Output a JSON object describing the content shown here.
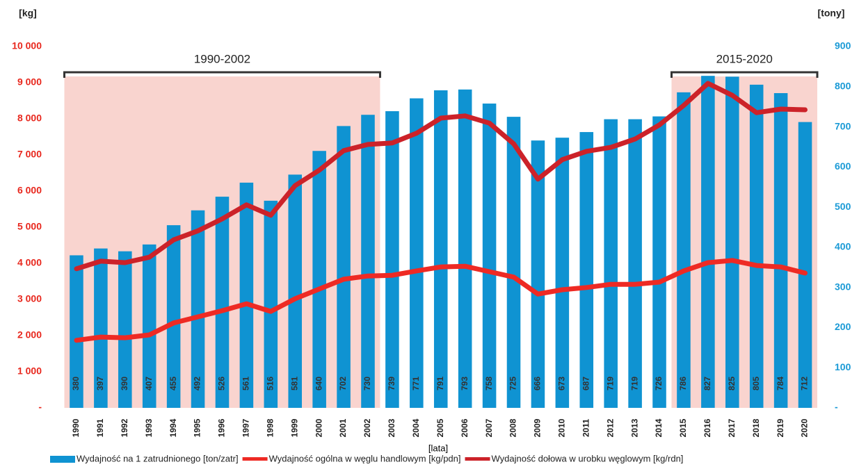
{
  "chart_data": {
    "type": "bar_line",
    "y_label": "[kg]",
    "y2_label": "[tony]",
    "x_label": "[lata]",
    "categories": [
      "1990",
      "1991",
      "1992",
      "1993",
      "1994",
      "1995",
      "1996",
      "1997",
      "1998",
      "1999",
      "2000",
      "2001",
      "2002",
      "2003",
      "2004",
      "2005",
      "2006",
      "2007",
      "2008",
      "2009",
      "2010",
      "2011",
      "2012",
      "2013",
      "2014",
      "2015",
      "2016",
      "2017",
      "2018",
      "2019",
      "2020"
    ],
    "series": [
      {
        "name": "Wydajność na 1 zatrudnionego [ton/zatr]",
        "type": "bar",
        "axis": "y2",
        "color": "#0f93d2",
        "values": [
          380,
          397,
          390,
          407,
          455,
          492,
          526,
          561,
          516,
          581,
          640,
          702,
          730,
          739,
          771,
          791,
          793,
          758,
          725,
          666,
          673,
          687,
          719,
          719,
          726,
          786,
          827,
          825,
          805,
          784,
          712
        ]
      },
      {
        "name": "Wydajność ogólna w węglu handlowym [kg/pdn]",
        "type": "line",
        "axis": "y",
        "color": "#ee2a24",
        "values": [
          1870,
          1960,
          1940,
          2020,
          2350,
          2520,
          2690,
          2880,
          2670,
          3020,
          3290,
          3560,
          3650,
          3670,
          3790,
          3900,
          3920,
          3770,
          3620,
          3150,
          3270,
          3330,
          3420,
          3420,
          3480,
          3790,
          4020,
          4080,
          3940,
          3900,
          3730
        ]
      },
      {
        "name": "Wydajność dołowa w urobku węglowym [kg/rdn]",
        "type": "line",
        "axis": "y",
        "color": "#cc2229",
        "values": [
          3850,
          4060,
          4020,
          4170,
          4650,
          4900,
          5230,
          5620,
          5330,
          6150,
          6580,
          7120,
          7290,
          7330,
          7600,
          8020,
          8080,
          7880,
          7310,
          6330,
          6870,
          7100,
          7210,
          7440,
          7830,
          8370,
          8980,
          8650,
          8170,
          8270,
          8250
        ]
      }
    ],
    "ylim": [
      0,
      10000
    ],
    "yticks": [
      {
        "value": 0,
        "label": "-"
      },
      {
        "value": 1000,
        "label": "1 000"
      },
      {
        "value": 2000,
        "label": "2 000"
      },
      {
        "value": 3000,
        "label": "3 000"
      },
      {
        "value": 4000,
        "label": "4 000"
      },
      {
        "value": 5000,
        "label": "5 000"
      },
      {
        "value": 6000,
        "label": "6 000"
      },
      {
        "value": 7000,
        "label": "7 000"
      },
      {
        "value": 8000,
        "label": "8 000"
      },
      {
        "value": 9000,
        "label": "9 000"
      },
      {
        "value": 10000,
        "label": "10 000"
      }
    ],
    "y2lim": [
      0,
      900
    ],
    "y2ticks": [
      {
        "value": 0,
        "label": "-"
      },
      100,
      200,
      300,
      400,
      500,
      600,
      700,
      800,
      900
    ],
    "ranges": [
      {
        "label": "1990-2002",
        "from": "1990",
        "to": "2002",
        "color": "#f9d4cf"
      },
      {
        "label": "2015-2020",
        "from": "2015",
        "to": "2020",
        "color": "#f9d4cf"
      }
    ],
    "legend": "bottom"
  }
}
